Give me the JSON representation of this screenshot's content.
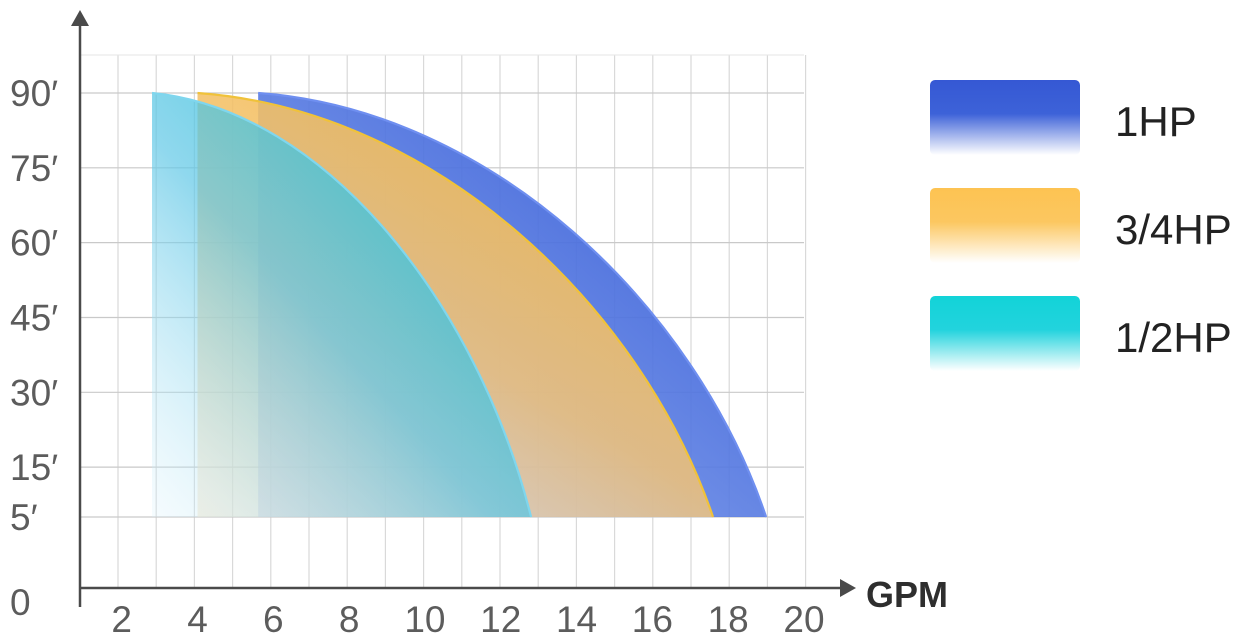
{
  "chart_data": {
    "type": "area",
    "title": "",
    "xlabel": "GPM",
    "ylabel": "",
    "x_ticks": [
      "2",
      "4",
      "6",
      "8",
      "10",
      "12",
      "14",
      "16",
      "18",
      "20"
    ],
    "y_ticks": [
      "0",
      "5′",
      "15′",
      "30′",
      "45′",
      "60′",
      "75′",
      "90′"
    ],
    "y_tick_values": [
      0,
      5,
      15,
      30,
      45,
      60,
      75,
      90
    ],
    "xlim": [
      0.9,
      20
    ],
    "ylim": [
      0,
      90
    ],
    "grid": true,
    "legend_position": "right",
    "series": [
      {
        "name": "1HP",
        "color": "#3a5fd6",
        "x_start": 5.6,
        "x_end": 19.0,
        "y_top": 90,
        "y_bottom": 5
      },
      {
        "name": "3/4HP",
        "color": "#f7c45a",
        "x_start": 4.0,
        "x_end": 17.6,
        "y_top": 90,
        "y_bottom": 5
      },
      {
        "name": "1/2HP",
        "color": "#22c9dc",
        "x_start": 2.8,
        "x_end": 12.8,
        "y_top": 90,
        "y_bottom": 5
      }
    ]
  }
}
